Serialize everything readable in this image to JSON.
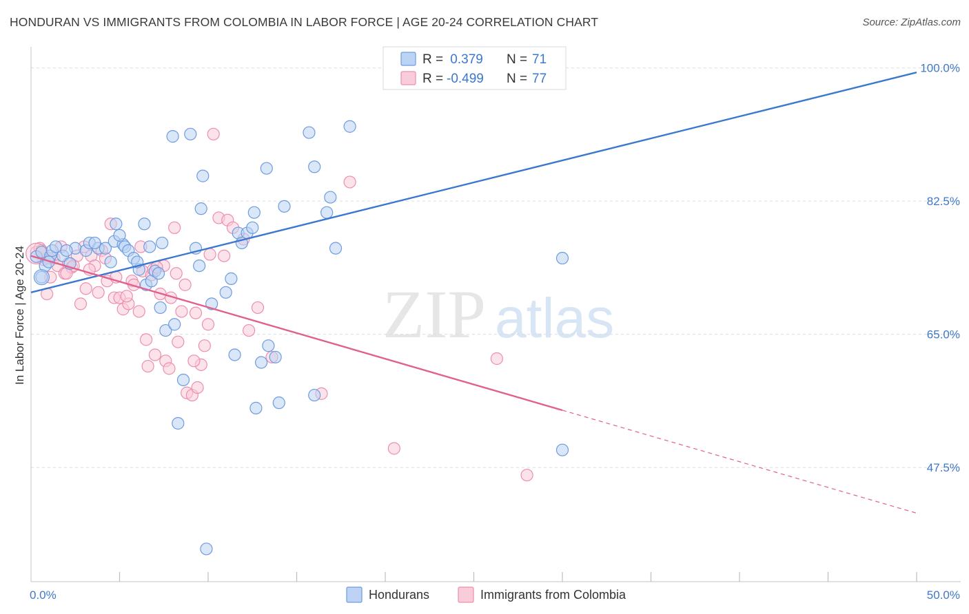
{
  "title": "HONDURAN VS IMMIGRANTS FROM COLOMBIA IN LABOR FORCE | AGE 20-24 CORRELATION CHART",
  "source": "Source: ZipAtlas.com",
  "watermark": {
    "zip": "ZIP",
    "atlas": "atlas"
  },
  "colors": {
    "blue": "#3a78d0",
    "blue_fill": "#bcd3f3",
    "blue_stroke": "#6d9be0",
    "pink": "#e0608e",
    "pink_fill": "#f9ccd9",
    "pink_stroke": "#ec8eaf",
    "tick_text": "#3f78c8",
    "grid": "#dcdcdc"
  },
  "legend": {
    "rows": [
      {
        "r_label": "R = ",
        "r_value": " 0.379",
        "n_label": "N = ",
        "n_value": "71",
        "series": "blue"
      },
      {
        "r_label": "R = ",
        "r_value": "-0.499",
        "n_label": "N = ",
        "n_value": "77",
        "series": "pink"
      }
    ]
  },
  "bottom_legend": [
    {
      "label": "Hondurans",
      "series": "blue"
    },
    {
      "label": "Immigrants from Colombia",
      "series": "pink"
    }
  ],
  "chart_data": {
    "type": "scatter",
    "title": "HONDURAN VS IMMIGRANTS FROM COLOMBIA IN LABOR FORCE | AGE 20-24 CORRELATION CHART",
    "xlabel": "",
    "ylabel": "In Labor Force | Age 20-24",
    "xlim": [
      0,
      50
    ],
    "ylim": [
      32.5,
      101.5
    ],
    "x_tick_labels": [
      {
        "value": 0,
        "label": "0.0%"
      },
      {
        "value": 50,
        "label": "50.0%"
      }
    ],
    "x_minor_ticks": [
      5,
      10,
      15,
      20,
      25,
      30,
      35,
      40,
      45,
      50
    ],
    "y_ticks": [
      {
        "value": 100,
        "label": "100.0%"
      },
      {
        "value": 82.5,
        "label": "82.5%"
      },
      {
        "value": 65,
        "label": "65.0%"
      },
      {
        "value": 47.5,
        "label": "47.5%"
      }
    ],
    "grid": true,
    "series": [
      {
        "name": "Hondurans",
        "color": "blue",
        "trend": {
          "x0": 0,
          "y0": 70.5,
          "x1": 50,
          "y1": 99.4,
          "solid_to": 50
        },
        "points": [
          [
            0.3,
            75.2
          ],
          [
            0.6,
            75.8
          ],
          [
            0.6,
            72.5
          ],
          [
            0.8,
            74.0
          ],
          [
            1.1,
            75.3
          ],
          [
            1.2,
            76.0
          ],
          [
            1.4,
            76.5
          ],
          [
            1.8,
            75.3
          ],
          [
            2.2,
            74.3
          ],
          [
            2.5,
            76.3
          ],
          [
            3.1,
            76.0
          ],
          [
            3.3,
            77.0
          ],
          [
            3.8,
            76.3
          ],
          [
            4.2,
            76.3
          ],
          [
            4.7,
            77.2
          ],
          [
            4.8,
            79.5
          ],
          [
            5.2,
            76.8
          ],
          [
            5.3,
            76.5
          ],
          [
            5.5,
            76.0
          ],
          [
            5.8,
            75.0
          ],
          [
            6.1,
            73.5
          ],
          [
            6.4,
            79.5
          ],
          [
            6.5,
            71.5
          ],
          [
            6.8,
            72.0
          ],
          [
            7.0,
            73.3
          ],
          [
            7.3,
            68.5
          ],
          [
            7.6,
            65.5
          ],
          [
            8.1,
            66.3
          ],
          [
            8.3,
            53.3
          ],
          [
            8.6,
            59.0
          ],
          [
            9.0,
            91.3
          ],
          [
            9.3,
            76.3
          ],
          [
            9.6,
            81.5
          ],
          [
            9.7,
            85.8
          ],
          [
            9.9,
            36.8
          ],
          [
            11.0,
            70.5
          ],
          [
            11.3,
            72.3
          ],
          [
            11.5,
            62.3
          ],
          [
            11.7,
            78.3
          ],
          [
            12.2,
            78.3
          ],
          [
            12.6,
            81.0
          ],
          [
            12.7,
            55.3
          ],
          [
            13.0,
            61.3
          ],
          [
            13.3,
            86.8
          ],
          [
            13.4,
            63.5
          ],
          [
            13.8,
            62.0
          ],
          [
            14.0,
            56.0
          ],
          [
            14.3,
            81.8
          ],
          [
            15.7,
            91.5
          ],
          [
            16.0,
            87.0
          ],
          [
            16.0,
            57.0
          ],
          [
            16.7,
            81.0
          ],
          [
            16.9,
            83.0
          ],
          [
            17.2,
            76.3
          ],
          [
            18.0,
            92.3
          ],
          [
            30.0,
            75.0
          ],
          [
            30.0,
            49.8
          ],
          [
            8.0,
            91.0
          ],
          [
            5.0,
            78.0
          ],
          [
            2.0,
            76.0
          ],
          [
            1.0,
            74.5
          ],
          [
            3.6,
            77.0
          ],
          [
            4.5,
            74.5
          ],
          [
            7.2,
            73.0
          ],
          [
            6.0,
            74.5
          ],
          [
            6.7,
            76.5
          ],
          [
            7.4,
            77.0
          ],
          [
            9.5,
            74.0
          ],
          [
            10.2,
            69.0
          ],
          [
            11.9,
            77.0
          ],
          [
            12.5,
            79.0
          ]
        ]
      },
      {
        "name": "Immigrants from Colombia",
        "color": "pink",
        "trend": {
          "x0": 0,
          "y0": 75.3,
          "x1": 50,
          "y1": 41.5,
          "solid_to": 30
        },
        "points": [
          [
            0.3,
            75.8
          ],
          [
            0.5,
            76.3
          ],
          [
            0.7,
            74.8
          ],
          [
            0.9,
            70.3
          ],
          [
            1.1,
            72.5
          ],
          [
            1.3,
            75.0
          ],
          [
            1.5,
            74.0
          ],
          [
            1.7,
            76.5
          ],
          [
            1.9,
            73.0
          ],
          [
            2.1,
            74.3
          ],
          [
            2.3,
            73.8
          ],
          [
            2.6,
            75.3
          ],
          [
            2.8,
            69.0
          ],
          [
            3.1,
            71.0
          ],
          [
            3.4,
            75.3
          ],
          [
            3.6,
            74.0
          ],
          [
            3.8,
            70.5
          ],
          [
            4.0,
            76.0
          ],
          [
            4.3,
            72.0
          ],
          [
            4.5,
            79.5
          ],
          [
            4.7,
            69.8
          ],
          [
            5.0,
            69.8
          ],
          [
            5.2,
            68.3
          ],
          [
            5.5,
            69.0
          ],
          [
            5.7,
            72.0
          ],
          [
            6.1,
            68.0
          ],
          [
            6.3,
            73.3
          ],
          [
            6.5,
            64.3
          ],
          [
            6.8,
            72.8
          ],
          [
            7.0,
            62.3
          ],
          [
            7.3,
            70.3
          ],
          [
            7.6,
            61.5
          ],
          [
            7.9,
            69.8
          ],
          [
            8.1,
            79.0
          ],
          [
            8.3,
            64.0
          ],
          [
            8.5,
            68.0
          ],
          [
            8.8,
            57.3
          ],
          [
            9.1,
            57.0
          ],
          [
            9.3,
            67.8
          ],
          [
            9.6,
            61.0
          ],
          [
            9.8,
            63.5
          ],
          [
            10.0,
            66.3
          ],
          [
            10.3,
            91.3
          ],
          [
            10.6,
            80.3
          ],
          [
            10.9,
            75.3
          ],
          [
            11.1,
            80.0
          ],
          [
            12.3,
            65.5
          ],
          [
            12.8,
            68.5
          ],
          [
            13.6,
            62.0
          ],
          [
            16.4,
            57.2
          ],
          [
            18.0,
            85.0
          ],
          [
            20.5,
            50.0
          ],
          [
            26.3,
            61.8
          ],
          [
            28.0,
            46.5
          ],
          [
            0.6,
            76.0
          ],
          [
            1.0,
            75.0
          ],
          [
            2.4,
            74.0
          ],
          [
            3.0,
            76.5
          ],
          [
            4.2,
            75.0
          ],
          [
            5.8,
            71.5
          ],
          [
            6.2,
            76.5
          ],
          [
            6.9,
            73.5
          ],
          [
            7.5,
            74.0
          ],
          [
            8.2,
            73.0
          ],
          [
            5.4,
            70.0
          ],
          [
            4.8,
            72.5
          ],
          [
            3.3,
            73.5
          ],
          [
            2.0,
            73.0
          ],
          [
            7.1,
            73.8
          ],
          [
            8.7,
            71.5
          ],
          [
            9.2,
            61.5
          ],
          [
            10.1,
            75.5
          ],
          [
            11.4,
            79.0
          ],
          [
            12.0,
            77.5
          ],
          [
            6.6,
            60.8
          ],
          [
            7.8,
            60.5
          ],
          [
            9.4,
            58.0
          ]
        ]
      }
    ]
  }
}
